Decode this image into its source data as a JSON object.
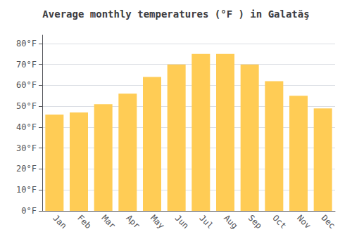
{
  "chart_data": {
    "type": "bar",
    "title": "Average monthly temperatures (°F ) in Galatăş",
    "categories": [
      "Jan",
      "Feb",
      "Mar",
      "Apr",
      "May",
      "Jun",
      "Jul",
      "Aug",
      "Sep",
      "Oct",
      "Nov",
      "Dec"
    ],
    "values": [
      46,
      47,
      51,
      56,
      64,
      70,
      75,
      75,
      70,
      62,
      55,
      49
    ],
    "color": "#FFCC55",
    "ylim": [
      0,
      84
    ],
    "yticks": [
      {
        "value": 0,
        "label": "0°F"
      },
      {
        "value": 10,
        "label": "10°F"
      },
      {
        "value": 20,
        "label": "20°F"
      },
      {
        "value": 30,
        "label": "30°F"
      },
      {
        "value": 40,
        "label": "40°F"
      },
      {
        "value": 50,
        "label": "50°F"
      },
      {
        "value": 60,
        "label": "60°F"
      },
      {
        "value": 70,
        "label": "70°F"
      },
      {
        "value": 80,
        "label": "80°F"
      }
    ],
    "grid": true
  }
}
